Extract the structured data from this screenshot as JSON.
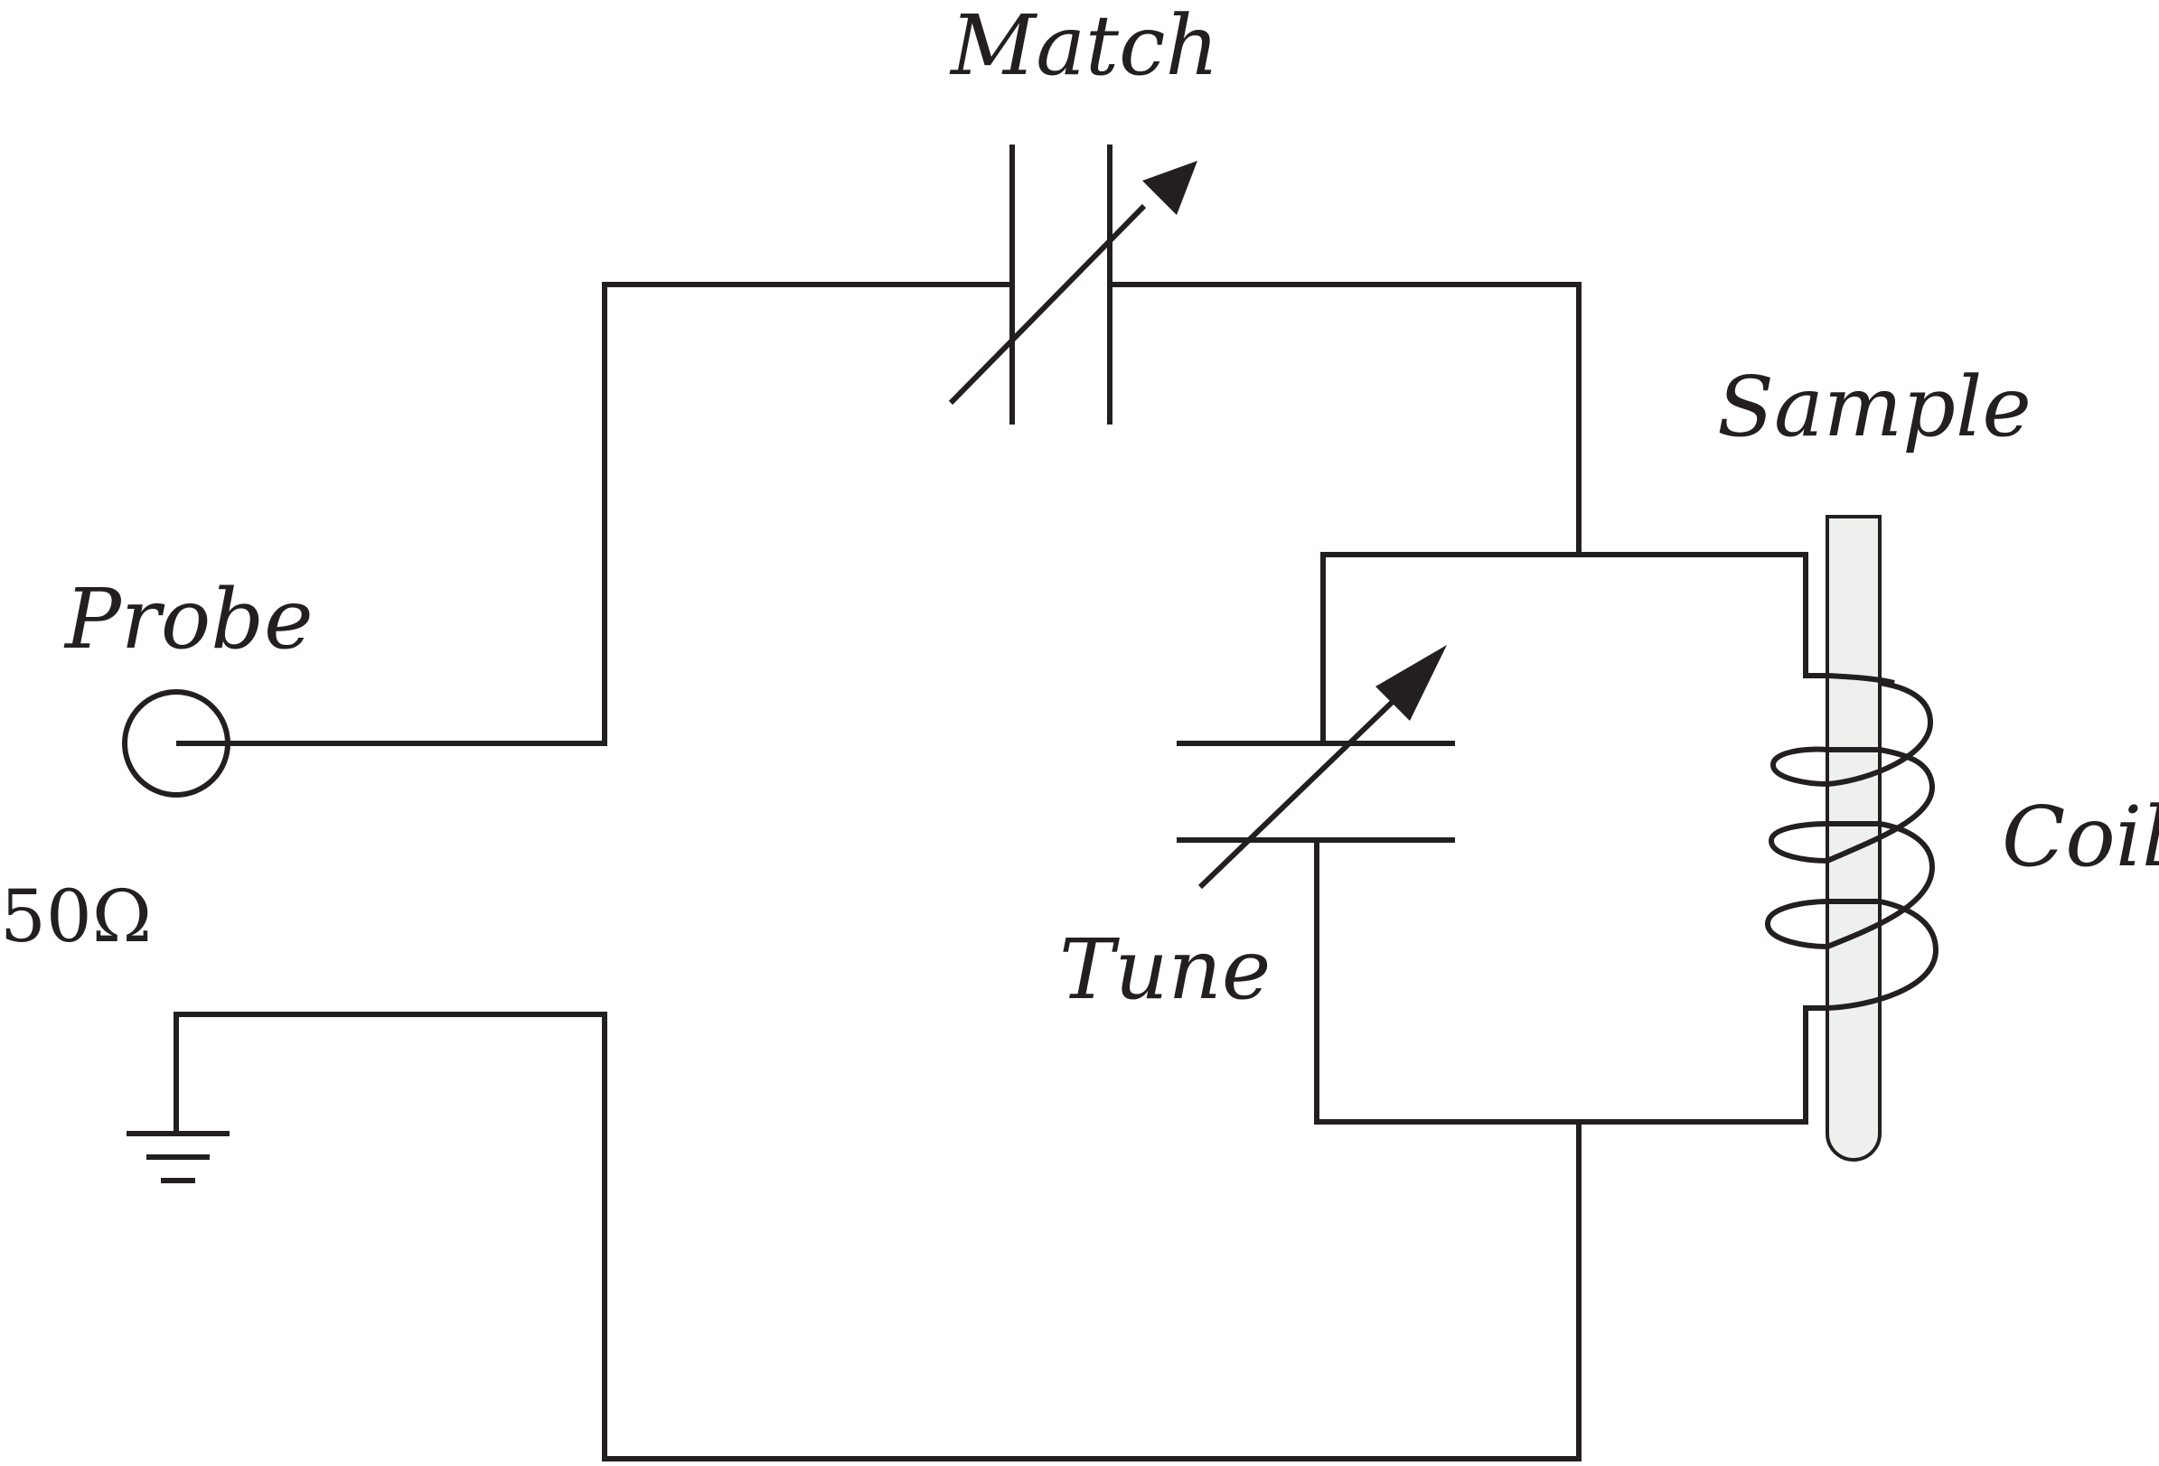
{
  "labels": {
    "match": "Match",
    "sample": "Sample",
    "probe": "Probe",
    "impedance": "50Ω",
    "tune": "Tune",
    "coil": "Coil"
  },
  "colors": {
    "line": "#231f20",
    "tube_fill": "#eef0ee",
    "background": "#ffffff"
  }
}
